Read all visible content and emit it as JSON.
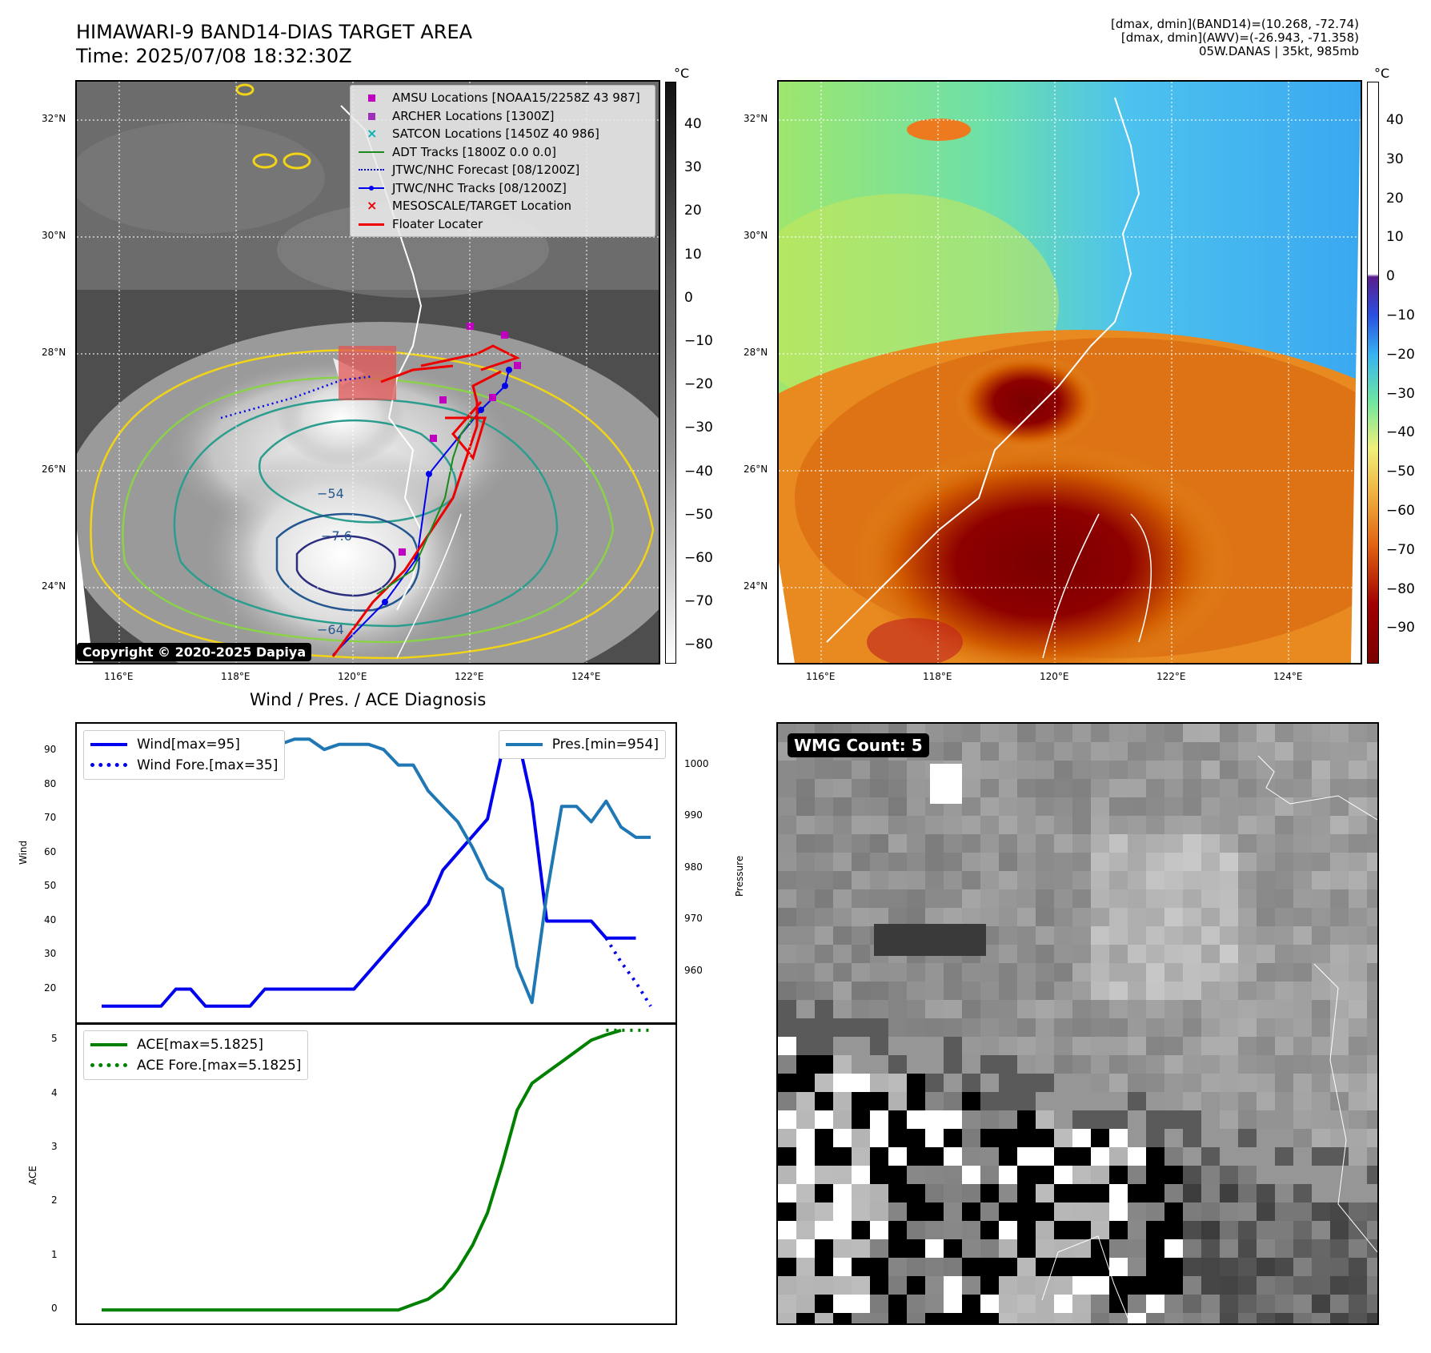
{
  "header": {
    "title": "HIMAWARI-9 BAND14-DIAS TARGET AREA",
    "time": "Time: 2025/07/08 18:32:30Z",
    "stats": [
      "[dmax, dmin](BAND14)=(10.268, -72.74)",
      "[dmax, dmin](AWV)=(-26.943, -71.358)",
      "05W.DANAS | 35kt, 985mb"
    ]
  },
  "map": {
    "lat_ticks": [
      "32°N",
      "30°N",
      "28°N",
      "26°N",
      "24°N"
    ],
    "lon_ticks": [
      "116°E",
      "118°E",
      "120°E",
      "122°E",
      "124°E"
    ],
    "colorbar_unit": "°C",
    "ir_colorbar_ticks": [
      "40",
      "30",
      "20",
      "10",
      "0",
      "−10",
      "−20",
      "−30",
      "−40",
      "−50",
      "−60",
      "−70",
      "−80"
    ],
    "awv_colorbar_ticks": [
      "40",
      "30",
      "20",
      "10",
      "0",
      "−10",
      "−20",
      "−30",
      "−40",
      "−50",
      "−60",
      "−70",
      "−80",
      "−90"
    ],
    "copyright": "Copyright © 2020-2025 Dapiya",
    "contour_labels": [
      "−7.6",
      "−64",
      "−54"
    ],
    "legend": [
      {
        "label": "AMSU Locations [NOAA15/2258Z 43 987]",
        "icon": "magenta-square",
        "color": "#c000c0"
      },
      {
        "label": "ARCHER Locations [1300Z]",
        "icon": "purple-square",
        "color": "#9d2fb8"
      },
      {
        "label": "SATCON Locations [1450Z 40 986]",
        "icon": "cyan-x",
        "color": "#00b4b4"
      },
      {
        "label": "ADT Tracks [1800Z 0.0 0.0]",
        "icon": "green-line",
        "color": "#1a8a1a"
      },
      {
        "label": "JTWC/NHC Forecast [08/1200Z]",
        "icon": "blue-dotted-line",
        "color": "#0000ee"
      },
      {
        "label": "JTWC/NHC Tracks [08/1200Z]",
        "icon": "blue-dot-line",
        "color": "#0000ee"
      },
      {
        "label": "MESOSCALE/TARGET Location",
        "icon": "red-x",
        "color": "#ee0000"
      },
      {
        "label": "Floater Locater",
        "icon": "red-line",
        "color": "#ee0000"
      }
    ]
  },
  "chart_data": [
    {
      "type": "line",
      "title": "Wind / Pres. / ACE Diagnosis",
      "ylabel": "Wind",
      "ylabel_right": "Pressure",
      "ylim": [
        10,
        98
      ],
      "ylim_right": [
        950,
        1008
      ],
      "yticks": [
        20,
        30,
        40,
        50,
        60,
        70,
        80,
        90
      ],
      "yticks_right": [
        960,
        970,
        980,
        990,
        1000
      ],
      "x": [
        0,
        1,
        2,
        3,
        4,
        5,
        6,
        7,
        8,
        9,
        10,
        11,
        12,
        13,
        14,
        15,
        16,
        17,
        18,
        19,
        20,
        21,
        22,
        23,
        24,
        25,
        26,
        27,
        28,
        29,
        30,
        31,
        32,
        33,
        34,
        35,
        36,
        37
      ],
      "series": [
        {
          "name": "Wind[max=95]",
          "color": "#0000ee",
          "style": "solid",
          "values": [
            15,
            15,
            15,
            15,
            15,
            20,
            20,
            15,
            15,
            15,
            15,
            20,
            20,
            20,
            20,
            20,
            20,
            20,
            25,
            30,
            35,
            40,
            45,
            55,
            60,
            65,
            70,
            90,
            95,
            75,
            40,
            40,
            40,
            40,
            35,
            35,
            35,
            null
          ]
        },
        {
          "name": "Wind Fore.[max=35]",
          "color": "#0000ee",
          "style": "dotted",
          "x": [
            34,
            35,
            36,
            37
          ],
          "values": [
            35,
            28,
            22,
            15
          ]
        },
        {
          "name": "Pres.[min=954]",
          "color": "#1f77b4",
          "style": "solid",
          "axis": "right",
          "values": [
            1006,
            1006,
            1006,
            1003,
            1003,
            1003,
            1004,
            1004,
            1004,
            1004,
            1005,
            1005,
            1004,
            1005,
            1005,
            1003,
            1004,
            1004,
            1004,
            1003,
            1000,
            1000,
            995,
            992,
            989,
            984,
            978,
            976,
            961,
            954,
            975,
            992,
            992,
            989,
            993,
            988,
            986,
            986
          ]
        }
      ]
    },
    {
      "type": "line",
      "ylabel": "ACE",
      "ylim": [
        -0.25,
        5.3
      ],
      "yticks": [
        0,
        1,
        2,
        3,
        4,
        5
      ],
      "x": [
        0,
        1,
        2,
        3,
        4,
        5,
        6,
        7,
        8,
        9,
        10,
        11,
        12,
        13,
        14,
        15,
        16,
        17,
        18,
        19,
        20,
        21,
        22,
        23,
        24,
        25,
        26,
        27,
        28,
        29,
        30,
        31,
        32,
        33,
        34,
        35,
        36,
        37
      ],
      "series": [
        {
          "name": "ACE[max=5.1825]",
          "color": "#008000",
          "style": "solid",
          "values": [
            0,
            0,
            0,
            0,
            0,
            0,
            0,
            0,
            0,
            0,
            0,
            0,
            0,
            0,
            0,
            0,
            0,
            0,
            0,
            0,
            0,
            0.1,
            0.2,
            0.4,
            0.75,
            1.2,
            1.8,
            2.7,
            3.7,
            4.2,
            4.4,
            4.6,
            4.8,
            5.0,
            5.1,
            5.1825,
            null,
            null
          ]
        },
        {
          "name": "ACE Fore.[max=5.1825]",
          "color": "#008000",
          "style": "dotted",
          "x": [
            34,
            35,
            36,
            37
          ],
          "values": [
            5.1825,
            5.1825,
            5.1825,
            5.1825
          ]
        }
      ]
    }
  ],
  "wmg": {
    "label": "WMG Count: 5"
  }
}
